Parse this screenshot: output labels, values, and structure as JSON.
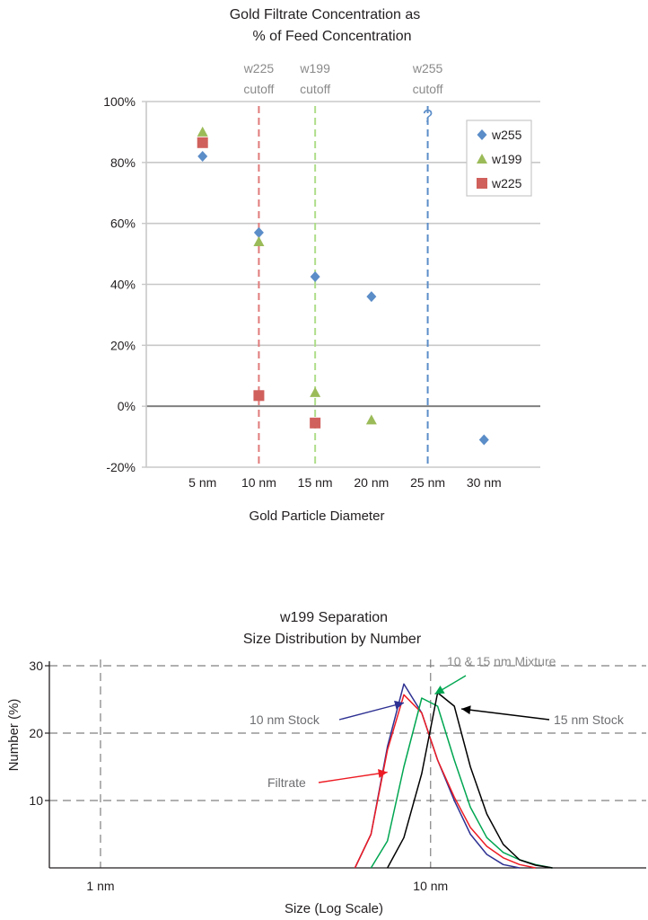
{
  "chart_data": [
    {
      "type": "scatter",
      "title": "Gold Filtrate Concentration as % of Feed Concentration",
      "title_lines": [
        "Gold Filtrate Concentration as",
        "% of Feed Concentration"
      ],
      "xlabel": "Gold Particle Diameter",
      "ylabel": "",
      "categories": [
        "5 nm",
        "10 nm",
        "15 nm",
        "20 nm",
        "25 nm",
        "30 nm"
      ],
      "x_values": [
        5,
        10,
        15,
        20,
        25,
        30
      ],
      "xlim": [
        0,
        35
      ],
      "ylim": [
        -20,
        100
      ],
      "y_ticks": [
        -20,
        0,
        20,
        40,
        60,
        80,
        100
      ],
      "y_tick_labels": [
        "-20%",
        "0%",
        "20%",
        "40%",
        "60%",
        "80%",
        "100%"
      ],
      "grid": "horizontal",
      "legend_position": "top-right",
      "series": [
        {
          "name": "w255",
          "marker": "diamond",
          "color": "#5b8dc8",
          "points": [
            [
              5,
              82
            ],
            [
              10,
              57
            ],
            [
              15,
              42.5
            ],
            [
              20,
              36
            ],
            [
              30,
              -11
            ]
          ]
        },
        {
          "name": "w199",
          "marker": "triangle",
          "color": "#9bbb59",
          "points": [
            [
              5,
              90
            ],
            [
              10,
              54
            ],
            [
              15,
              4.5
            ],
            [
              20,
              -4.5
            ]
          ]
        },
        {
          "name": "w225",
          "marker": "square",
          "color": "#d0605c",
          "points": [
            [
              5,
              86.5
            ],
            [
              10,
              3.5
            ],
            [
              15,
              -5.5
            ]
          ]
        }
      ],
      "annotations": [
        {
          "label": "w225",
          "sublabel": "cutoff",
          "x": 10,
          "color": "#e07a7a"
        },
        {
          "label": "w199",
          "sublabel": "cutoff",
          "x": 15,
          "color": "#aedd8a"
        },
        {
          "label": "w255",
          "sublabel": "cutoff",
          "x": 25,
          "color": "#5b8dc8",
          "marker": "?"
        }
      ]
    },
    {
      "type": "line",
      "title": "w199 Separation Size Distribution by Number",
      "title_lines": [
        "w199 Separation",
        "Size Distribution by Number"
      ],
      "xlabel": "Size (Log Scale)",
      "ylabel": "Number (%)",
      "x_scale": "log",
      "xlim": [
        0.7,
        45
      ],
      "ylim": [
        0,
        32
      ],
      "x_ticks": [
        1,
        10
      ],
      "x_tick_labels": [
        "1 nm",
        "10 nm"
      ],
      "y_ticks": [
        10,
        20,
        30
      ],
      "y_tick_labels": [
        "10",
        "20",
        "30"
      ],
      "grid": "dashed",
      "series": [
        {
          "name": "10 nm Stock",
          "color": "#2e3192",
          "points": [
            [
              5.9,
              0
            ],
            [
              6.6,
              5
            ],
            [
              7.4,
              18
            ],
            [
              8.3,
              27.3
            ],
            [
              9.4,
              23
            ],
            [
              10.5,
              16
            ],
            [
              11.8,
              10
            ],
            [
              13.2,
              5
            ],
            [
              14.8,
              2
            ],
            [
              16.6,
              0.5
            ],
            [
              18.6,
              0
            ]
          ]
        },
        {
          "name": "Filtrate",
          "color": "#ed1c24",
          "points": [
            [
              5.9,
              0
            ],
            [
              6.6,
              5
            ],
            [
              7.4,
              17.5
            ],
            [
              8.3,
              25.7
            ],
            [
              9.4,
              23
            ],
            [
              10.5,
              16
            ],
            [
              11.8,
              10.5
            ],
            [
              13.2,
              6
            ],
            [
              14.8,
              3.2
            ],
            [
              16.6,
              1.5
            ],
            [
              18.6,
              0.5
            ],
            [
              20.8,
              0
            ]
          ]
        },
        {
          "name": "10 & 15 nm Mixture",
          "color": "#00a651",
          "points": [
            [
              6.6,
              0
            ],
            [
              7.4,
              4
            ],
            [
              8.3,
              15
            ],
            [
              9.4,
              25.2
            ],
            [
              10.5,
              24
            ],
            [
              11.8,
              16
            ],
            [
              13.2,
              9
            ],
            [
              14.8,
              4.5
            ],
            [
              16.6,
              2.3
            ],
            [
              18.6,
              1.2
            ],
            [
              20.8,
              0.5
            ],
            [
              23.4,
              0
            ]
          ]
        },
        {
          "name": "15 nm Stock",
          "color": "#000000",
          "points": [
            [
              7.4,
              0
            ],
            [
              8.3,
              4.5
            ],
            [
              9.4,
              14
            ],
            [
              10.5,
              26
            ],
            [
              11.8,
              24
            ],
            [
              13.2,
              15
            ],
            [
              14.8,
              8
            ],
            [
              16.6,
              3.5
            ],
            [
              18.6,
              1.2
            ],
            [
              20.8,
              0.4
            ],
            [
              23.4,
              0
            ]
          ]
        }
      ],
      "annotations": [
        {
          "label": "10 nm Stock",
          "series": "10 nm Stock",
          "target": [
            8.3,
            24.5
          ]
        },
        {
          "label": "Filtrate",
          "series": "Filtrate",
          "target": [
            7.4,
            14.2
          ]
        },
        {
          "label": "10 & 15 nm Mixture",
          "series": "10 & 15 nm Mixture",
          "target": [
            10.3,
            25.8
          ]
        },
        {
          "label": "15 nm Stock",
          "series": "15 nm Stock",
          "target": [
            12.4,
            23.6
          ]
        }
      ]
    }
  ]
}
